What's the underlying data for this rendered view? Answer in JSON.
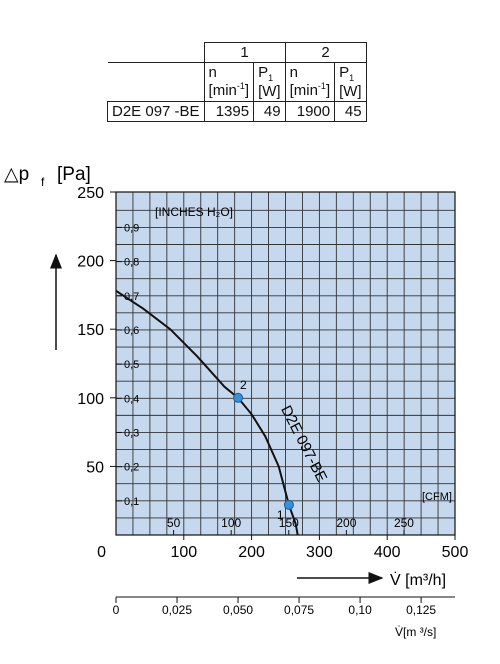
{
  "table": {
    "group1": "1",
    "group2": "2",
    "n_label": "n",
    "n_unit": "[min",
    "n_unit_exp": "-1",
    "n_unit_close": "]",
    "p_label": "P",
    "p_sub": "1",
    "p_unit": "[W]",
    "model": "D2E 097 -BE",
    "n1": "1395",
    "p1": "49",
    "n2": "1900",
    "p2": "45"
  },
  "chart_data": {
    "type": "line",
    "ylabel_symbol": "△p",
    "ylabel_sub": "f",
    "ylabel_unit": "[Pa]",
    "xlabel": "V̇ [m³/h]",
    "xlabel2": "V̇[m ³/s]",
    "inches_label": "[INCHES H₂O]",
    "cfm_label": "[CFM]",
    "curve_label": "D2E 097-BE",
    "xlim": [
      0,
      500
    ],
    "ylim": [
      0,
      250
    ],
    "x_ticks": [
      "0",
      "100",
      "200",
      "300",
      "400",
      "500"
    ],
    "y_ticks": [
      "50",
      "100",
      "150",
      "200",
      "250"
    ],
    "inches_ticks": [
      "0,1",
      "0,2",
      "0,3",
      "0,4",
      "0,5",
      "0,6",
      "0,7",
      "0,8",
      "0,9"
    ],
    "cfm_ticks": [
      "50",
      "100",
      "150",
      "200",
      "250"
    ],
    "m3s_ticks": [
      "0",
      "0,025",
      "0,050",
      "0,075",
      "0,10",
      "0,125"
    ],
    "series": [
      {
        "x": [
          0,
          40,
          80,
          120,
          160,
          180,
          200,
          220,
          240,
          255,
          265,
          268
        ],
        "y": [
          178,
          165,
          150,
          130,
          108,
          100,
          88,
          72,
          50,
          22,
          8,
          0
        ]
      }
    ],
    "points": [
      {
        "label": "2",
        "x": 180,
        "y": 100
      },
      {
        "label": "1",
        "x": 255,
        "y": 22
      }
    ]
  }
}
